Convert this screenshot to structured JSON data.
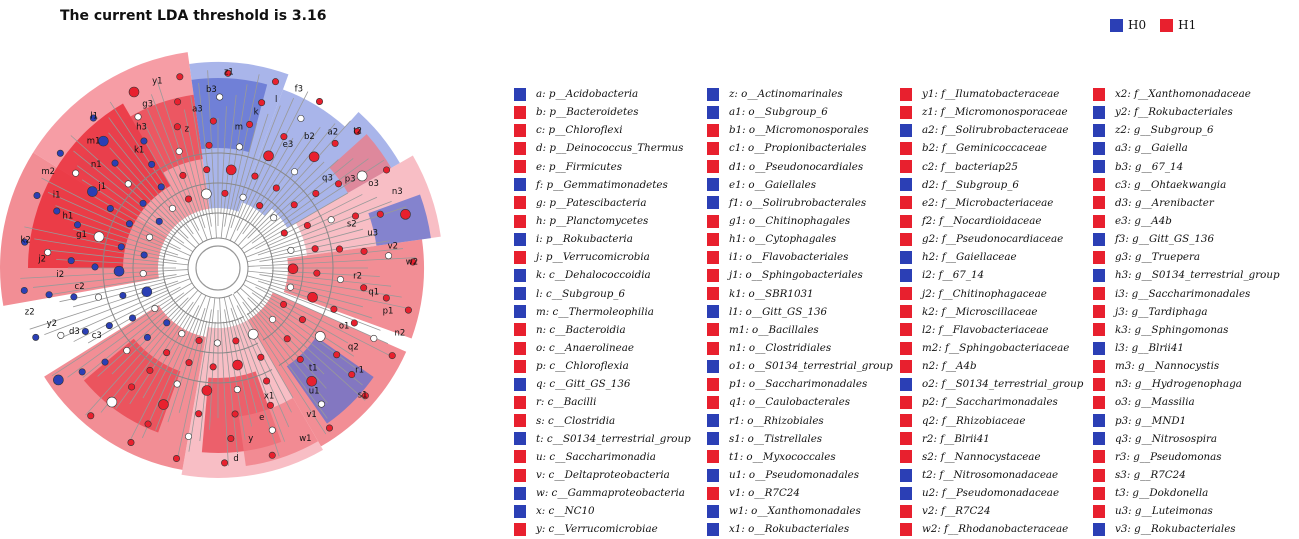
{
  "title": "The current LDA threshold is 3.16",
  "colors": {
    "H0": "#2b3fb5",
    "H1": "#e8202e",
    "H0_fill": "#8d9be0",
    "H1_fill": "#f07a82",
    "H1_light": "#f7b3bb"
  },
  "legend": [
    {
      "label": "H0",
      "group": "H0"
    },
    {
      "label": "H1",
      "group": "H1"
    }
  ],
  "columns": [
    [
      {
        "text": "a: p__Acidobacteria",
        "group": "H0"
      },
      {
        "text": "b: p__Bacteroidetes",
        "group": "H1"
      },
      {
        "text": "c: p__Chloroflexi",
        "group": "H1"
      },
      {
        "text": "d: p__Deinococcus_Thermus",
        "group": "H1"
      },
      {
        "text": "e: p__Firmicutes",
        "group": "H1"
      },
      {
        "text": "f: p__Gemmatimonadetes",
        "group": "H0"
      },
      {
        "text": "g: p__Patescibacteria",
        "group": "H1"
      },
      {
        "text": "h: p__Planctomycetes",
        "group": "H1"
      },
      {
        "text": "i: p__Rokubacteria",
        "group": "H0"
      },
      {
        "text": "j: p__Verrucomicrobia",
        "group": "H1"
      },
      {
        "text": "k: c__Dehalococcoidia",
        "group": "H0"
      },
      {
        "text": "l: c__Subgroup_6",
        "group": "H0"
      },
      {
        "text": "m: c__Thermoleophilia",
        "group": "H0"
      },
      {
        "text": "n: c__Bacteroidia",
        "group": "H1"
      },
      {
        "text": "o: c__Anaerolineae",
        "group": "H1"
      },
      {
        "text": "p: c__Chloroflexia",
        "group": "H1"
      },
      {
        "text": "q: c__Gitt_GS_136",
        "group": "H0"
      },
      {
        "text": "r: c__Bacilli",
        "group": "H1"
      },
      {
        "text": "s: c__Clostridia",
        "group": "H1"
      },
      {
        "text": "t: c__S0134_terrestrial_group",
        "group": "H0"
      },
      {
        "text": "u: c__Saccharimonadia",
        "group": "H1"
      },
      {
        "text": "v: c__Deltaproteobacteria",
        "group": "H1"
      },
      {
        "text": "w: c__Gammaproteobacteria",
        "group": "H0"
      },
      {
        "text": "x: c__NC10",
        "group": "H0"
      },
      {
        "text": "y: c__Verrucomicrobiae",
        "group": "H1"
      }
    ],
    [
      {
        "text": "z: o__Actinomarinales",
        "group": "H0"
      },
      {
        "text": "a1: o__Subgroup_6",
        "group": "H0"
      },
      {
        "text": "b1: o__Micromonosporales",
        "group": "H1"
      },
      {
        "text": "c1: o__Propionibacteriales",
        "group": "H1"
      },
      {
        "text": "d1: o__Pseudonocardiales",
        "group": "H1"
      },
      {
        "text": "e1: o__Gaiellales",
        "group": "H0"
      },
      {
        "text": "f1: o__Solirubrobacterales",
        "group": "H0"
      },
      {
        "text": "g1: o__Chitinophagales",
        "group": "H1"
      },
      {
        "text": "h1: o__Cytophagales",
        "group": "H1"
      },
      {
        "text": "i1: o__Flavobacteriales",
        "group": "H1"
      },
      {
        "text": "j1: o__Sphingobacteriales",
        "group": "H1"
      },
      {
        "text": "k1: o__SBR1031",
        "group": "H1"
      },
      {
        "text": "l1: o__Gitt_GS_136",
        "group": "H0"
      },
      {
        "text": "m1: o__Bacillales",
        "group": "H1"
      },
      {
        "text": "n1: o__Clostridiales",
        "group": "H1"
      },
      {
        "text": "o1: o__S0134_terrestrial_group",
        "group": "H0"
      },
      {
        "text": "p1: o__Saccharimonadales",
        "group": "H1"
      },
      {
        "text": "q1: o__Caulobacterales",
        "group": "H1"
      },
      {
        "text": "r1: o__Rhizobiales",
        "group": "H0"
      },
      {
        "text": "s1: o__Tistrellales",
        "group": "H0"
      },
      {
        "text": "t1: o__Myxococcales",
        "group": "H1"
      },
      {
        "text": "u1: o__Pseudomonadales",
        "group": "H0"
      },
      {
        "text": "v1: o__R7C24",
        "group": "H1"
      },
      {
        "text": "w1: o__Xanthomonadales",
        "group": "H0"
      },
      {
        "text": "x1: o__Rokubacteriales",
        "group": "H0"
      }
    ],
    [
      {
        "text": "y1: f__Ilumatobacteraceae",
        "group": "H1"
      },
      {
        "text": "z1: f__Micromonosporaceae",
        "group": "H1"
      },
      {
        "text": "a2: f__Solirubrobacteraceae",
        "group": "H0"
      },
      {
        "text": "b2: f__Geminicoccaceae",
        "group": "H1"
      },
      {
        "text": "c2: f__bacteriap25",
        "group": "H1"
      },
      {
        "text": "d2: f__Subgroup_6",
        "group": "H0"
      },
      {
        "text": "e2: f__Microbacteriaceae",
        "group": "H1"
      },
      {
        "text": "f2: f__Nocardioidaceae",
        "group": "H1"
      },
      {
        "text": "g2: f__Pseudonocardiaceae",
        "group": "H1"
      },
      {
        "text": "h2: f__Gaiellaceae",
        "group": "H0"
      },
      {
        "text": "i2: f__67_14",
        "group": "H0"
      },
      {
        "text": "j2: f__Chitinophagaceae",
        "group": "H1"
      },
      {
        "text": "k2: f__Microscillaceae",
        "group": "H1"
      },
      {
        "text": "l2: f__Flavobacteriaceae",
        "group": "H1"
      },
      {
        "text": "m2: f__Sphingobacteriaceae",
        "group": "H1"
      },
      {
        "text": "n2: f__A4b",
        "group": "H1"
      },
      {
        "text": "o2: f__S0134_terrestrial_group",
        "group": "H0"
      },
      {
        "text": "p2: f__Saccharimonadales",
        "group": "H1"
      },
      {
        "text": "q2: f__Rhizobiaceae",
        "group": "H1"
      },
      {
        "text": "r2: f__Blrii41",
        "group": "H1"
      },
      {
        "text": "s2: f__Nannocystaceae",
        "group": "H1"
      },
      {
        "text": "t2: f__Nitrosomonadaceae",
        "group": "H0"
      },
      {
        "text": "u2: f__Pseudomonadaceae",
        "group": "H0"
      },
      {
        "text": "v2: f__R7C24",
        "group": "H1"
      },
      {
        "text": "w2: f__Rhodanobacteraceae",
        "group": "H1"
      }
    ],
    [
      {
        "text": "x2: f__Xanthomonadaceae",
        "group": "H1"
      },
      {
        "text": "y2: f__Rokubacteriales",
        "group": "H0"
      },
      {
        "text": "z2: g__Subgroup_6",
        "group": "H0"
      },
      {
        "text": "a3: g__Gaiella",
        "group": "H0"
      },
      {
        "text": "b3: g__67_14",
        "group": "H0"
      },
      {
        "text": "c3: g__Ohtaekwangia",
        "group": "H1"
      },
      {
        "text": "d3: g__Arenibacter",
        "group": "H1"
      },
      {
        "text": "e3: g__A4b",
        "group": "H1"
      },
      {
        "text": "f3: g__Gitt_GS_136",
        "group": "H0"
      },
      {
        "text": "g3: g__Truepera",
        "group": "H1"
      },
      {
        "text": "h3: g__S0134_terrestrial_group",
        "group": "H0"
      },
      {
        "text": "i3: g__Saccharimonadales",
        "group": "H1"
      },
      {
        "text": "j3: g__Tardiphaga",
        "group": "H1"
      },
      {
        "text": "k3: g__Sphingomonas",
        "group": "H1"
      },
      {
        "text": "l3: g__Blrii41",
        "group": "H0"
      },
      {
        "text": "m3: g__Nannocystis",
        "group": "H1"
      },
      {
        "text": "n3: g__Hydrogenophaga",
        "group": "H1"
      },
      {
        "text": "o3: g__Massilia",
        "group": "H1"
      },
      {
        "text": "p3: g__MND1",
        "group": "H0"
      },
      {
        "text": "q3: g__Nitrosospira",
        "group": "H0"
      },
      {
        "text": "r3: g__Pseudomonas",
        "group": "H1"
      },
      {
        "text": "s3: g__R7C24",
        "group": "H1"
      },
      {
        "text": "t3: g__Dokdonella",
        "group": "H1"
      },
      {
        "text": "u3: g__Luteimonas",
        "group": "H1"
      },
      {
        "text": "v3: g__Rokubacteriales",
        "group": "H0"
      }
    ]
  ],
  "cladogram": {
    "sectors": [
      {
        "label": "c",
        "group": "H1"
      },
      {
        "label": "b",
        "group": "H1"
      },
      {
        "label": "a",
        "group": "H0"
      },
      {
        "label": "i",
        "group": "H0"
      },
      {
        "label": "f",
        "group": "H0"
      },
      {
        "label": "g",
        "group": "H1"
      },
      {
        "label": "j",
        "group": "H1"
      },
      {
        "label": "h",
        "group": "H1"
      },
      {
        "label": "e",
        "group": "H1"
      },
      {
        "label": "d",
        "group": "H1"
      }
    ],
    "node_labels": [
      "c3",
      "d3",
      "y2",
      "z2",
      "c2",
      "i2",
      "j2",
      "k2",
      "g1",
      "h1",
      "i1",
      "m2",
      "j1",
      "n1",
      "m1",
      "l1",
      "k1",
      "h3",
      "g3",
      "y1",
      "z",
      "a3",
      "b3",
      "z1",
      "m",
      "k",
      "l",
      "f3",
      "e3",
      "b2",
      "a2",
      "t2",
      "q3",
      "p3",
      "o3",
      "n3",
      "s2",
      "u3",
      "v2",
      "w2",
      "r2",
      "q1",
      "p1",
      "n2",
      "o1",
      "q2",
      "r1",
      "s1",
      "t1",
      "u1",
      "v1",
      "w1",
      "x1",
      "e",
      "y",
      "d"
    ]
  }
}
